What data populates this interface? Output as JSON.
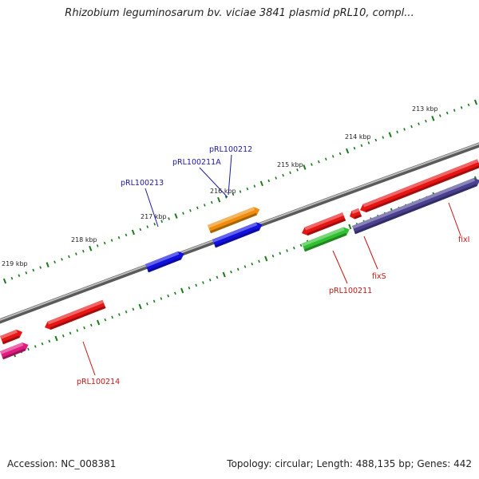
{
  "title": "Rhizobium leguminosarum bv. viciae 3841 plasmid pRL10, compl...",
  "footer": {
    "accession": "Accession: NC_008381",
    "summary": "Topology: circular; Length: 488,135 bp; Genes: 442"
  },
  "colors": {
    "backbone": "#888888",
    "ticks": "#1a7a1a",
    "tick_label": "#222222",
    "forward_label": "#1a1aa0",
    "reverse_label": "#c81414"
  },
  "ruler": {
    "ticks": [
      {
        "label": "213 kbp"
      },
      {
        "label": "214 kbp"
      },
      {
        "label": "215 kbp"
      },
      {
        "label": "216 kbp"
      },
      {
        "label": "217 kbp"
      },
      {
        "label": "218 kbp"
      },
      {
        "label": "219 kbp"
      }
    ]
  },
  "features": [
    {
      "name": "pRL100212",
      "strand": "forward",
      "color": "#f08c0a",
      "labeled": true
    },
    {
      "name": "pRL100211A",
      "strand": "forward",
      "color": "#1010e0",
      "labeled": true
    },
    {
      "name": "pRL100213",
      "strand": "forward",
      "color": "#1010e0",
      "labeled": true
    },
    {
      "name": "pRL100211",
      "strand": "reverse",
      "color": "#e81414",
      "labeled": true
    },
    {
      "name": "fixS",
      "strand": "reverse",
      "color": "#e81414",
      "labeled": true
    },
    {
      "name": "fixI",
      "strand": "reverse",
      "color": "#e81414",
      "labeled": true
    },
    {
      "name": "pRL100214",
      "strand": "reverse",
      "color": "#e81414",
      "labeled": true
    },
    {
      "name": "",
      "strand": "reverse",
      "color": "#30c030",
      "labeled": false
    },
    {
      "name": "",
      "strand": "reverse",
      "color": "#4a4090",
      "labeled": false
    },
    {
      "name": "",
      "strand": "reverse",
      "color": "#e81414",
      "labeled": false
    },
    {
      "name": "",
      "strand": "reverse",
      "color": "#e01c80",
      "labeled": false
    }
  ]
}
